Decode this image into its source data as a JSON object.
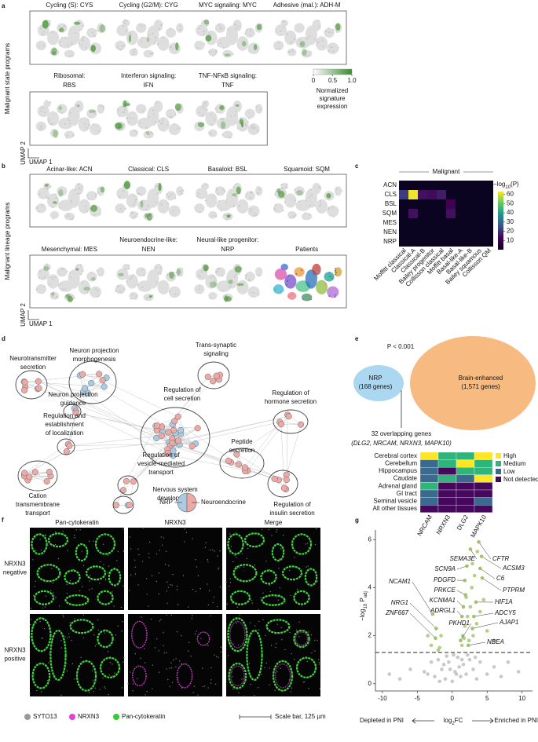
{
  "figure": {
    "panel_labels": [
      "a",
      "b",
      "c",
      "d",
      "e",
      "f",
      "g"
    ],
    "a": {
      "side_label": "Malignant state programs",
      "umaps": [
        [
          "Cycling (S): CYS"
        ],
        [
          "Cycling (G2/M): CYG"
        ],
        [
          "MYC signaling: MYC"
        ],
        [
          "Adhesive (mal.): ADH-M"
        ],
        [
          "Ribosomal:",
          "RBS"
        ],
        [
          "Interferon signaling:",
          "IFN"
        ],
        [
          "TNF-NFκB signaling:",
          "TNF"
        ]
      ],
      "colorbar": {
        "lim": [
          0,
          1
        ],
        "ticks": [
          0,
          0.5,
          {
            "value": 1,
            "label": "1.0"
          }
        ],
        "label": [
          "Normalized",
          "signature",
          "expression"
        ],
        "color": "#3a8a2e"
      },
      "umap_axes": [
        "UMAP 2",
        "UMAP 1"
      ]
    },
    "b": {
      "side_label": "Malignant lineage programs",
      "umaps": [
        [
          "Acinar-like: ACN"
        ],
        [
          "Classical: CLS"
        ],
        [
          "Basaloid: BSL"
        ],
        [
          "Squamoid: SQM"
        ],
        [
          "Mesenchymal: MES"
        ],
        [
          "Neuroendocrine-like:",
          "NEN"
        ],
        [
          "Neural-like progenitor:",
          "NRP"
        ],
        [
          "Patients"
        ]
      ],
      "umap_axes": [
        "UMAP 2",
        "UMAP 1"
      ]
    },
    "d": {
      "clusters": [
        [
          "Neurotransmitter",
          "secretion"
        ],
        [
          "Neuron projection",
          "morphogenesis"
        ],
        [
          "Trans-synaptic",
          "signaling"
        ],
        [
          "Neuron projection",
          "guidance"
        ],
        [
          "Regulation of",
          "cell secretion"
        ],
        [
          "Regulation of",
          "hormone secretion"
        ],
        [
          "Peptide",
          "secretion"
        ],
        [
          "Regulation and",
          "establishment",
          "of localization"
        ],
        [
          "Regulation of",
          "vesicle-mediated",
          "transport"
        ],
        [
          "Nervous system",
          "development"
        ],
        [
          "Regulation of",
          "insulin secretion"
        ],
        [
          "Cation",
          "transmembrane",
          "transport"
        ]
      ],
      "legend": {
        "left": "NRP",
        "right": "Neuroendocrine"
      }
    },
    "e": {
      "pvalue": "P < 0.001",
      "sets": [
        {
          "name": "NRP",
          "count": "(168 genes)"
        },
        {
          "name": "Brain-enhanced",
          "count": "(1,571 genes)"
        }
      ],
      "overlap": [
        "32 overlapping genes",
        "(DLG2, NRCAM, NRXN3, MAPK10)"
      ]
    },
    "f": {
      "columns": [
        "Pan-cytokeratin",
        "NRXN3",
        "Merge"
      ],
      "rows": [
        [
          "NRXN3",
          "negative"
        ],
        [
          "NRXN3",
          "positive"
        ]
      ],
      "legend": [
        "SYTO13",
        "NRXN3",
        "Pan-cytokeratin"
      ],
      "scale_bar": "Scale bar, 125 µm"
    }
  },
  "chart_data": [
    {
      "type": "heatmap",
      "title": "Malignant",
      "rows": [
        "ACN",
        "CLS",
        "BSL",
        "SQM",
        "MES",
        "NEN",
        "NRP"
      ],
      "columns": [
        "Moffitt classical",
        "Classical-A",
        "Classical-B",
        "Bailey progenitor",
        "Collisson classical",
        "Moffitt basal",
        "Basal-like-A",
        "Basal-like-B",
        "Bailey squamous",
        "Collisson QM"
      ],
      "values": [
        [
          0,
          0,
          0,
          0,
          0,
          0,
          0,
          0,
          0,
          0
        ],
        [
          22,
          62,
          15,
          14,
          17,
          0,
          0,
          0,
          0,
          0
        ],
        [
          0,
          0,
          0,
          0,
          0,
          12,
          0,
          0,
          0,
          0
        ],
        [
          0,
          15,
          0,
          0,
          0,
          15,
          0,
          0,
          0,
          0
        ],
        [
          0,
          0,
          0,
          0,
          0,
          0,
          0,
          0,
          0,
          0
        ],
        [
          0,
          0,
          0,
          0,
          0,
          0,
          0,
          0,
          0,
          0
        ],
        [
          0,
          0,
          0,
          0,
          0,
          0,
          0,
          0,
          0,
          0
        ]
      ],
      "colorbar_label": [
        "−log",
        "10",
        "(P)"
      ],
      "zlim": [
        0,
        63
      ],
      "zticks": [
        10,
        20,
        30,
        40,
        50,
        60
      ],
      "colormap": [
        "#0b0420",
        "#440154",
        "#3b528b",
        "#21918c",
        "#5ec962",
        "#fde725"
      ]
    },
    {
      "type": "heatmap",
      "rows": [
        "Cerebral cortex",
        "Cerebellum",
        "Hippocampus",
        "Caudate",
        "Adrenal gland",
        "GI tract",
        "Seminal vesicle",
        "All other tissues"
      ],
      "columns": [
        "NRCAM",
        "NRXN3",
        "DLG2",
        "MAPK10"
      ],
      "values": [
        [
          3,
          2,
          2,
          3
        ],
        [
          1,
          2,
          3,
          2
        ],
        [
          1,
          0,
          2,
          2
        ],
        [
          1,
          2,
          1,
          3
        ],
        [
          2,
          0,
          0,
          0
        ],
        [
          1,
          0,
          0,
          0
        ],
        [
          1,
          0,
          0,
          1
        ],
        [
          0,
          0,
          0,
          0
        ]
      ],
      "levels": [
        {
          "value": 3,
          "label": "High",
          "color": "#fde725"
        },
        {
          "value": 2,
          "label": "Medium",
          "color": "#2fb47c"
        },
        {
          "value": 1,
          "label": "Low",
          "color": "#3a6b8f"
        },
        {
          "value": 0,
          "label": "Not detected",
          "color": "#46085c"
        }
      ]
    },
    {
      "type": "scatter",
      "x": [
        -4,
        -3,
        -2.5,
        -2,
        -1.5,
        -1,
        -0.5,
        0,
        0.4,
        0.8,
        1.2,
        1.6,
        2,
        2.5,
        3,
        3.5,
        4,
        5,
        6,
        7,
        -6,
        -7.5,
        -9,
        9.5,
        0.2,
        -0.8,
        1,
        -1.8,
        2.2,
        3.3,
        -3.5,
        8,
        0.6,
        -0.3,
        1.4,
        -1.2,
        -1.8,
        -3,
        -1.6,
        -2,
        -3.5,
        1.5,
        1.8,
        2.2,
        2.6,
        2,
        2.4,
        3,
        3.5,
        4,
        4.5,
        1.4,
        2.8,
        3.2,
        2.9,
        3.6,
        1.7,
        5,
        6
      ],
      "y": [
        0.5,
        0.9,
        0.3,
        1,
        0.6,
        0.2,
        0.9,
        0.1,
        0.5,
        1.1,
        0.3,
        0.8,
        0.4,
        1,
        0.6,
        0.2,
        0.9,
        0.4,
        0.7,
        0.3,
        0.6,
        0.2,
        0.4,
        0.5,
        1.2,
        1.15,
        0.7,
        0.1,
        1.2,
        1.1,
        0.4,
        0.9,
        0.4,
        0.6,
        1,
        0.8,
        1.5,
        1.6,
        2,
        1.4,
        2,
        2,
        2.4,
        2.8,
        3.2,
        3.6,
        1.8,
        2,
        2.5,
        3,
        3.5,
        1.6,
        4,
        4.5,
        5,
        5.5,
        1.9,
        2.2,
        1.8
      ],
      "xlim": [
        -11,
        11.5
      ],
      "ylim": [
        -0.3,
        6.4
      ],
      "xticks": [
        -10,
        -5,
        0,
        5,
        10
      ],
      "yticks": [
        0,
        2,
        4,
        6
      ],
      "threshold": 1.3,
      "color": "#bcbcbc",
      "highlight_color": "#9cc46a",
      "annotations": [
        {
          "text": "NCAM1",
          "x": -2.8,
          "y": 2.9
        },
        {
          "text": "NRG1",
          "x": -2.3,
          "y": 2.3
        },
        {
          "text": "ZNF667",
          "x": -2.4,
          "y": 1.9
        },
        {
          "text": "SCN9A",
          "x": 2.1,
          "y": 4.9
        },
        {
          "text": "PDGFD",
          "x": 1.8,
          "y": 4.3
        },
        {
          "text": "PRKCE",
          "x": 1.9,
          "y": 3.7
        },
        {
          "text": "KCNMA1",
          "x": 1.6,
          "y": 3.2
        },
        {
          "text": "ADRGL1",
          "x": 1.4,
          "y": 2.8
        },
        {
          "text": "PKHD1",
          "x": 1.2,
          "y": 1.8
        },
        {
          "text": "SEMA3E",
          "x": 2.6,
          "y": 5.6
        },
        {
          "text": "CFTR",
          "x": 3.8,
          "y": 5.9
        },
        {
          "text": "ACSM3",
          "x": 4.2,
          "y": 5.3
        },
        {
          "text": "C6",
          "x": 4.0,
          "y": 4.8
        },
        {
          "text": "PTPRM",
          "x": 4.3,
          "y": 4.4
        },
        {
          "text": "HIF1A",
          "x": 3.4,
          "y": 3.4
        },
        {
          "text": "ADCY5",
          "x": 3.1,
          "y": 2.8
        },
        {
          "text": "AJAP1",
          "x": 2.9,
          "y": 2.3
        },
        {
          "text": "NBEA",
          "x": 2.3,
          "y": 1.6
        }
      ],
      "xlabel": [
        "log",
        "2",
        "FC"
      ],
      "ylabel": [
        "−log",
        "10",
        " P",
        "adj"
      ],
      "left_note": "Depleted in PNI",
      "right_note": "Enriched in PNI"
    }
  ]
}
